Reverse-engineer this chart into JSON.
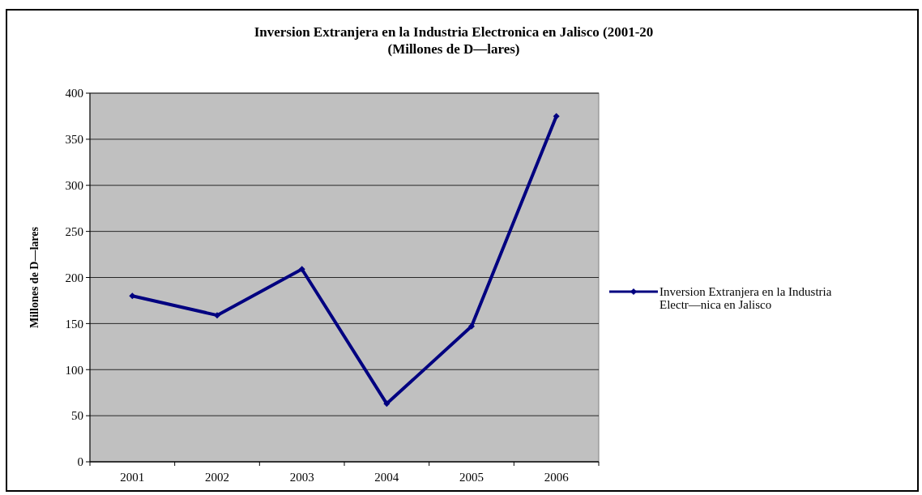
{
  "chart_data": {
    "type": "line",
    "title": "Inversion Extranjera en la Industria Electronica en Jalisco (2001-20",
    "subtitle": "(Millones de D—lares)",
    "ylabel": "Millones de D—lares",
    "categories": [
      "2001",
      "2002",
      "2003",
      "2004",
      "2005",
      "2006"
    ],
    "series": [
      {
        "name": "Inversion Extranjera en la Industria Electr—nica en Jalisco",
        "color": "#000080",
        "values": [
          180,
          159,
          209,
          63,
          147,
          375
        ]
      }
    ],
    "ylim": [
      0,
      400
    ],
    "yticks": [
      0,
      50,
      100,
      150,
      200,
      250,
      300,
      350,
      400
    ],
    "grid": "y",
    "legend": "right",
    "marker": "diamond",
    "line_style": "solid"
  }
}
